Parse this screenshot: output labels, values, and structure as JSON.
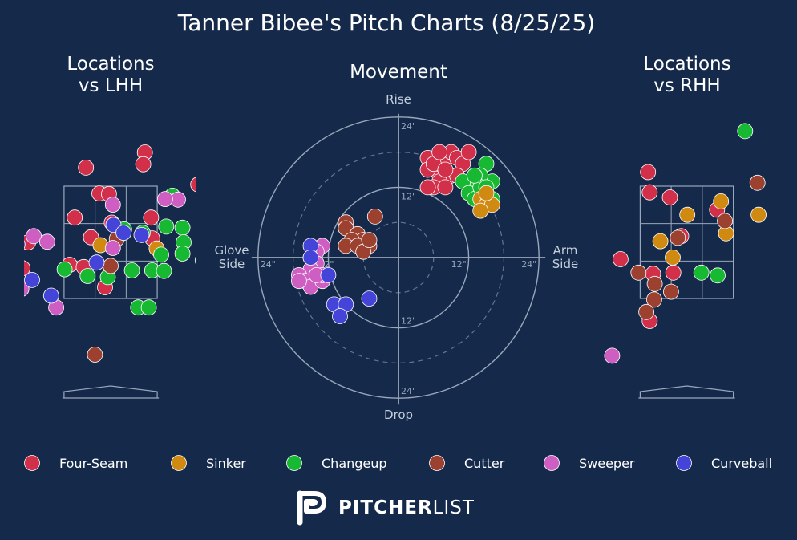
{
  "title": "Tanner Bibee's Pitch Charts (8/25/25)",
  "colors": {
    "background": "#152a4b",
    "grid": "#9aa7ba",
    "text": "#ffffff",
    "muted": "#c5cfdc"
  },
  "chart_data": [
    {
      "type": "scatter",
      "title": "Locations\nvs LHH",
      "points": [
        {
          "pitch": "Four-Seam",
          "x": -1.88,
          "y": 2.98
        },
        {
          "pitch": "Four-Seam",
          "x": 0.61,
          "y": 4.1
        },
        {
          "pitch": "Four-Seam",
          "x": 0.58,
          "y": 3.89
        },
        {
          "pitch": "Four-Seam",
          "x": -0.44,
          "y": 3.83
        },
        {
          "pitch": "Four-Seam",
          "x": 1.56,
          "y": 3.53
        },
        {
          "pitch": "Four-Seam",
          "x": -0.2,
          "y": 3.37
        },
        {
          "pitch": "Four-Seam",
          "x": -0.03,
          "y": 3.36
        },
        {
          "pitch": "Four-Seam",
          "x": -0.64,
          "y": 2.94
        },
        {
          "pitch": "Four-Seam",
          "x": 0.02,
          "y": 2.85
        },
        {
          "pitch": "Four-Seam",
          "x": 0.72,
          "y": 2.94
        },
        {
          "pitch": "Four-Seam",
          "x": -0.35,
          "y": 2.59
        },
        {
          "pitch": "Four-Seam",
          "x": -1.47,
          "y": 2.5
        },
        {
          "pitch": "Four-Seam",
          "x": 0.74,
          "y": 2.57
        },
        {
          "pitch": "Four-Seam",
          "x": -1.7,
          "y": 2.3
        },
        {
          "pitch": "Four-Seam",
          "x": -0.73,
          "y": 2.1
        },
        {
          "pitch": "Four-Seam",
          "x": -0.48,
          "y": 2.06
        },
        {
          "pitch": "Four-Seam",
          "x": -1.57,
          "y": 2.04
        },
        {
          "pitch": "Four-Seam",
          "x": -0.1,
          "y": 1.7
        },
        {
          "pitch": "Sinker",
          "x": -0.18,
          "y": 2.45
        },
        {
          "pitch": "Sinker",
          "x": 0.82,
          "y": 2.39
        },
        {
          "pitch": "Changeup",
          "x": 1.1,
          "y": 3.33
        },
        {
          "pitch": "Changeup",
          "x": 0.99,
          "y": 2.78
        },
        {
          "pitch": "Changeup",
          "x": 0.24,
          "y": 2.73
        },
        {
          "pitch": "Changeup",
          "x": 0.57,
          "y": 2.67
        },
        {
          "pitch": "Changeup",
          "x": 1.28,
          "y": 2.76
        },
        {
          "pitch": "Changeup",
          "x": 1.3,
          "y": 2.5
        },
        {
          "pitch": "Changeup",
          "x": 1.28,
          "y": 2.3
        },
        {
          "pitch": "Changeup",
          "x": 0.9,
          "y": 2.28
        },
        {
          "pitch": "Changeup",
          "x": 1.64,
          "y": 2.18
        },
        {
          "pitch": "Changeup",
          "x": -0.82,
          "y": 2.02
        },
        {
          "pitch": "Changeup",
          "x": 0.38,
          "y": 2.0
        },
        {
          "pitch": "Changeup",
          "x": 0.74,
          "y": 2.0
        },
        {
          "pitch": "Changeup",
          "x": 0.95,
          "y": 1.99
        },
        {
          "pitch": "Changeup",
          "x": -0.41,
          "y": 1.9
        },
        {
          "pitch": "Changeup",
          "x": -0.05,
          "y": 1.88
        },
        {
          "pitch": "Changeup",
          "x": 0.49,
          "y": 1.34
        },
        {
          "pitch": "Changeup",
          "x": 0.68,
          "y": 1.34
        },
        {
          "pitch": "Cutter",
          "x": 0.11,
          "y": 2.56
        },
        {
          "pitch": "Cutter",
          "x": -0.0,
          "y": 2.08
        },
        {
          "pitch": "Cutter",
          "x": -0.28,
          "y": 0.5
        },
        {
          "pitch": "Sweeper",
          "x": 1.2,
          "y": 3.26
        },
        {
          "pitch": "Sweeper",
          "x": 0.97,
          "y": 3.27
        },
        {
          "pitch": "Sweeper",
          "x": 0.04,
          "y": 3.17
        },
        {
          "pitch": "Sweeper",
          "x": -1.37,
          "y": 2.61
        },
        {
          "pitch": "Sweeper",
          "x": -1.13,
          "y": 2.51
        },
        {
          "pitch": "Sweeper",
          "x": 0.04,
          "y": 2.4
        },
        {
          "pitch": "Sweeper",
          "x": -1.88,
          "y": 2.0
        },
        {
          "pitch": "Sweeper",
          "x": -1.59,
          "y": 1.67
        },
        {
          "pitch": "Sweeper",
          "x": -0.97,
          "y": 1.34
        },
        {
          "pitch": "Curveball",
          "x": 0.05,
          "y": 2.81
        },
        {
          "pitch": "Curveball",
          "x": 0.23,
          "y": 2.67
        },
        {
          "pitch": "Curveball",
          "x": 0.55,
          "y": 2.63
        },
        {
          "pitch": "Curveball",
          "x": -1.66,
          "y": 2.46
        },
        {
          "pitch": "Curveball",
          "x": -0.25,
          "y": 2.14
        },
        {
          "pitch": "Curveball",
          "x": -1.4,
          "y": 1.83
        },
        {
          "pitch": "Curveball",
          "x": -1.06,
          "y": 1.55
        }
      ]
    },
    {
      "type": "scatter",
      "title": "Movement",
      "axis_labels": {
        "top": "Rise",
        "bottom": "Drop",
        "left": "Glove\nSide",
        "right": "Arm\nSide"
      },
      "ring_labels": [
        "12\"",
        "24\""
      ],
      "range": [
        -24,
        24
      ],
      "points": [
        {
          "pitch": "Four-Seam",
          "x": 5,
          "y": 17
        },
        {
          "pitch": "Four-Seam",
          "x": 6,
          "y": 15
        },
        {
          "pitch": "Four-Seam",
          "x": 7,
          "y": 16
        },
        {
          "pitch": "Four-Seam",
          "x": 8,
          "y": 17
        },
        {
          "pitch": "Four-Seam",
          "x": 9,
          "y": 18
        },
        {
          "pitch": "Four-Seam",
          "x": 10,
          "y": 17
        },
        {
          "pitch": "Four-Seam",
          "x": 11,
          "y": 16
        },
        {
          "pitch": "Four-Seam",
          "x": 9,
          "y": 14
        },
        {
          "pitch": "Four-Seam",
          "x": 7,
          "y": 13
        },
        {
          "pitch": "Four-Seam",
          "x": 6,
          "y": 12
        },
        {
          "pitch": "Four-Seam",
          "x": 5,
          "y": 12
        },
        {
          "pitch": "Four-Seam",
          "x": 8,
          "y": 12
        },
        {
          "pitch": "Four-Seam",
          "x": 12,
          "y": 18
        },
        {
          "pitch": "Four-Seam",
          "x": 5,
          "y": 15
        },
        {
          "pitch": "Four-Seam",
          "x": 6,
          "y": 16
        },
        {
          "pitch": "Four-Seam",
          "x": 7,
          "y": 18
        },
        {
          "pitch": "Four-Seam",
          "x": 10,
          "y": 14
        },
        {
          "pitch": "Four-Seam",
          "x": 8,
          "y": 15
        },
        {
          "pitch": "Changeup",
          "x": 15,
          "y": 16
        },
        {
          "pitch": "Changeup",
          "x": 16,
          "y": 13
        },
        {
          "pitch": "Changeup",
          "x": 14,
          "y": 14
        },
        {
          "pitch": "Changeup",
          "x": 13,
          "y": 13
        },
        {
          "pitch": "Changeup",
          "x": 12,
          "y": 13
        },
        {
          "pitch": "Changeup",
          "x": 11,
          "y": 13
        },
        {
          "pitch": "Changeup",
          "x": 12,
          "y": 11
        },
        {
          "pitch": "Changeup",
          "x": 13,
          "y": 10
        },
        {
          "pitch": "Changeup",
          "x": 16,
          "y": 10
        },
        {
          "pitch": "Changeup",
          "x": 14,
          "y": 12
        },
        {
          "pitch": "Changeup",
          "x": 13,
          "y": 14
        },
        {
          "pitch": "Changeup",
          "x": 15,
          "y": 12
        },
        {
          "pitch": "Sinker",
          "x": 14,
          "y": 10
        },
        {
          "pitch": "Sinker",
          "x": 15,
          "y": 9
        },
        {
          "pitch": "Sinker",
          "x": 16,
          "y": 9
        },
        {
          "pitch": "Sinker",
          "x": 14,
          "y": 8
        },
        {
          "pitch": "Sinker",
          "x": 15,
          "y": 11
        },
        {
          "pitch": "Cutter",
          "x": -4,
          "y": 7
        },
        {
          "pitch": "Cutter",
          "x": -9,
          "y": 6
        },
        {
          "pitch": "Cutter",
          "x": -9,
          "y": 5
        },
        {
          "pitch": "Cutter",
          "x": -7,
          "y": 4
        },
        {
          "pitch": "Cutter",
          "x": -6,
          "y": 3
        },
        {
          "pitch": "Cutter",
          "x": -8,
          "y": 3
        },
        {
          "pitch": "Cutter",
          "x": -9,
          "y": 2
        },
        {
          "pitch": "Cutter",
          "x": -7,
          "y": 2
        },
        {
          "pitch": "Cutter",
          "x": -5,
          "y": 2
        },
        {
          "pitch": "Cutter",
          "x": -6,
          "y": 1
        },
        {
          "pitch": "Cutter",
          "x": -5,
          "y": 3
        },
        {
          "pitch": "Sweeper",
          "x": -13,
          "y": 2
        },
        {
          "pitch": "Sweeper",
          "x": -14,
          "y": 1
        },
        {
          "pitch": "Sweeper",
          "x": -15,
          "y": 0
        },
        {
          "pitch": "Sweeper",
          "x": -14,
          "y": -1
        },
        {
          "pitch": "Sweeper",
          "x": -15,
          "y": -2
        },
        {
          "pitch": "Sweeper",
          "x": -17,
          "y": -3
        },
        {
          "pitch": "Sweeper",
          "x": -16,
          "y": -4
        },
        {
          "pitch": "Sweeper",
          "x": -15,
          "y": -5
        },
        {
          "pitch": "Sweeper",
          "x": -13,
          "y": -4
        },
        {
          "pitch": "Sweeper",
          "x": -13,
          "y": -3
        },
        {
          "pitch": "Sweeper",
          "x": -17,
          "y": -4
        },
        {
          "pitch": "Sweeper",
          "x": -14,
          "y": -3
        },
        {
          "pitch": "Curveball",
          "x": -15,
          "y": 2
        },
        {
          "pitch": "Curveball",
          "x": -15,
          "y": 0
        },
        {
          "pitch": "Curveball",
          "x": -12,
          "y": -3
        },
        {
          "pitch": "Curveball",
          "x": -11,
          "y": -8
        },
        {
          "pitch": "Curveball",
          "x": -9,
          "y": -8
        },
        {
          "pitch": "Curveball",
          "x": -10,
          "y": -10
        },
        {
          "pitch": "Curveball",
          "x": -5,
          "y": -7
        }
      ]
    },
    {
      "type": "scatter",
      "title": "Locations\nvs RHH",
      "points": [
        {
          "pitch": "Four-Seam",
          "x": -0.69,
          "y": 3.75
        },
        {
          "pitch": "Four-Seam",
          "x": -0.66,
          "y": 3.39
        },
        {
          "pitch": "Four-Seam",
          "x": -0.3,
          "y": 3.3
        },
        {
          "pitch": "Four-Seam",
          "x": 0.54,
          "y": 3.08
        },
        {
          "pitch": "Four-Seam",
          "x": -0.1,
          "y": 2.61
        },
        {
          "pitch": "Four-Seam",
          "x": -1.18,
          "y": 2.2
        },
        {
          "pitch": "Four-Seam",
          "x": -0.6,
          "y": 1.94
        },
        {
          "pitch": "Four-Seam",
          "x": -0.24,
          "y": 1.96
        },
        {
          "pitch": "Four-Seam",
          "x": -0.66,
          "y": 1.1
        },
        {
          "pitch": "Sinker",
          "x": 0.61,
          "y": 3.23
        },
        {
          "pitch": "Sinker",
          "x": 0.01,
          "y": 2.99
        },
        {
          "pitch": "Sinker",
          "x": 1.28,
          "y": 2.99
        },
        {
          "pitch": "Sinker",
          "x": 0.7,
          "y": 2.66
        },
        {
          "pitch": "Sinker",
          "x": -0.47,
          "y": 2.52
        },
        {
          "pitch": "Sinker",
          "x": -0.25,
          "y": 2.23
        },
        {
          "pitch": "Changeup",
          "x": 1.04,
          "y": 4.48
        },
        {
          "pitch": "Changeup",
          "x": 0.26,
          "y": 1.96
        },
        {
          "pitch": "Changeup",
          "x": 0.55,
          "y": 1.91
        },
        {
          "pitch": "Cutter",
          "x": 1.26,
          "y": 3.56
        },
        {
          "pitch": "Cutter",
          "x": 0.68,
          "y": 2.88
        },
        {
          "pitch": "Cutter",
          "x": -0.16,
          "y": 2.58
        },
        {
          "pitch": "Cutter",
          "x": -0.86,
          "y": 1.96
        },
        {
          "pitch": "Cutter",
          "x": -0.57,
          "y": 1.76
        },
        {
          "pitch": "Cutter",
          "x": -0.28,
          "y": 1.62
        },
        {
          "pitch": "Cutter",
          "x": -0.58,
          "y": 1.48
        },
        {
          "pitch": "Cutter",
          "x": -0.72,
          "y": 1.26
        },
        {
          "pitch": "Sweeper",
          "x": -1.33,
          "y": 0.48
        }
      ]
    }
  ],
  "legend": [
    {
      "name": "Four-Seam",
      "color": "#d2304a"
    },
    {
      "name": "Sinker",
      "color": "#d08a12"
    },
    {
      "name": "Changeup",
      "color": "#17b832"
    },
    {
      "name": "Cutter",
      "color": "#9c4030"
    },
    {
      "name": "Sweeper",
      "color": "#cf5ec2"
    },
    {
      "name": "Curveball",
      "color": "#4445d8"
    }
  ],
  "brand": {
    "bold": "PITCHER",
    "light": "LIST"
  }
}
